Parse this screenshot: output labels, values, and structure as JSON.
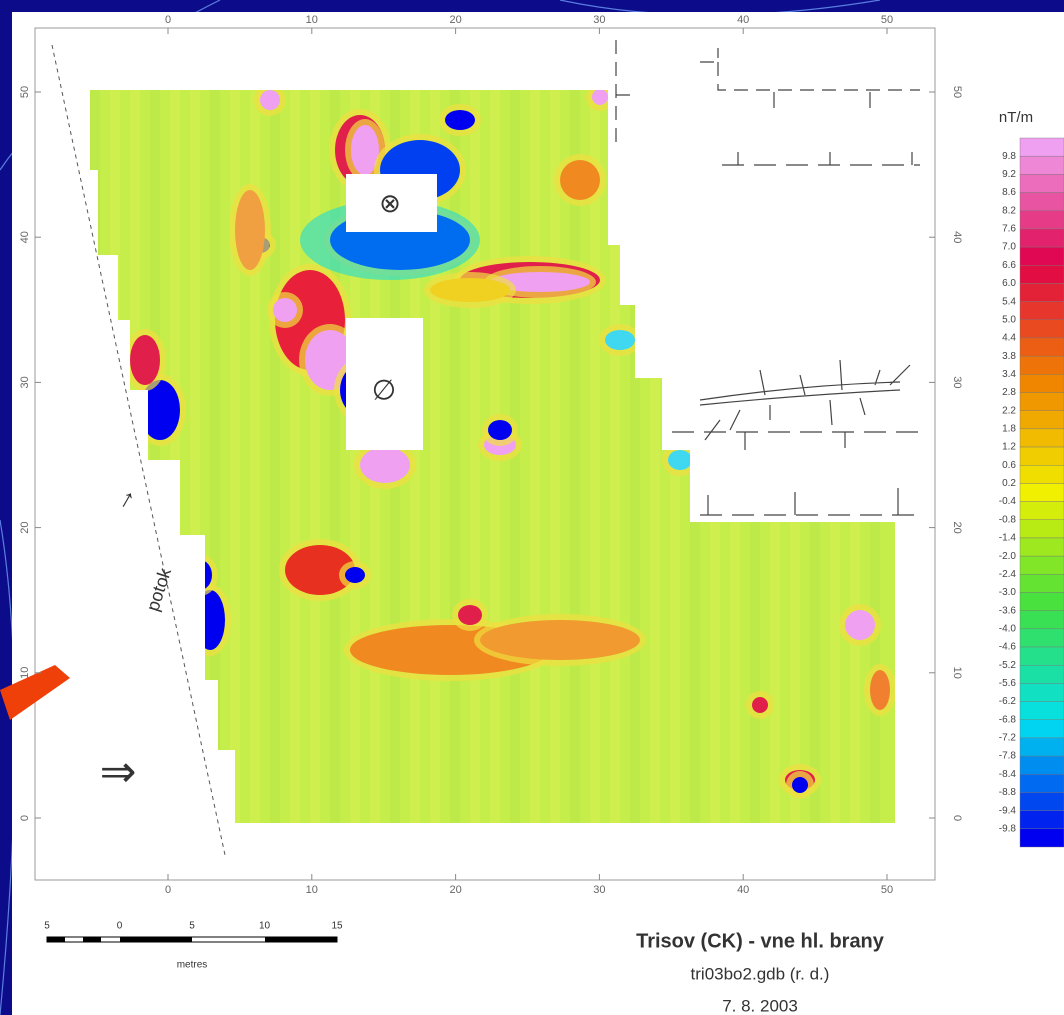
{
  "map": {
    "x_ticks_top": [
      0,
      10,
      20,
      30,
      40,
      50
    ],
    "x_ticks_bottom": [
      0,
      10,
      20,
      30,
      40,
      50
    ],
    "y_ticks_left": [
      50,
      40,
      30,
      20,
      10,
      0
    ],
    "y_ticks_right": [
      50,
      40,
      30,
      20,
      10,
      0
    ],
    "annotation": "potok",
    "marker_cross": "⊗",
    "marker_empty": "∅",
    "marker_arrow": "⇒"
  },
  "legend": {
    "unit": "nT/m",
    "labels": [
      "9.8",
      "9.2",
      "8.6",
      "8.2",
      "7.6",
      "7.0",
      "6.6",
      "6.0",
      "5.4",
      "5.0",
      "4.4",
      "3.8",
      "3.4",
      "2.8",
      "2.2",
      "1.8",
      "1.2",
      "0.6",
      "0.2",
      "-0.4",
      "-0.8",
      "-1.4",
      "-2.0",
      "-2.4",
      "-3.0",
      "-3.6",
      "-4.0",
      "-4.6",
      "-5.2",
      "-5.6",
      "-6.2",
      "-6.8",
      "-7.2",
      "-7.8",
      "-8.4",
      "-8.8",
      "-9.4",
      "-9.8"
    ]
  },
  "scale_bar": {
    "labels": [
      "5",
      "0",
      "5",
      "10",
      "15"
    ],
    "unit": "metres"
  },
  "caption": {
    "title": "Trisov (CK) - vne hl. brany",
    "file": "tri03bo2.gdb (r. d.)",
    "date": "7. 8. 2003"
  }
}
